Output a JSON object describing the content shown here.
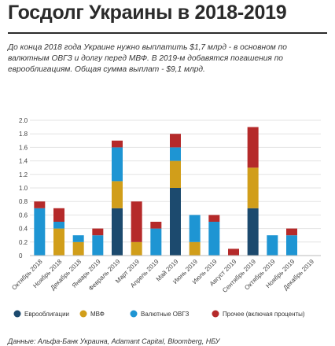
{
  "title": "Госдолг Украины в 2018-2019",
  "description": "До конца 2018 года Украине нужно выплатить $1,7 млрд - в основном по валютным ОВГЗ и долгу перед МВФ. В 2019-м добавятся погашения по еврооблигациям. Общая сумма выплат - $9,1 млрд.",
  "source": "Данные: Альфа-Банк Украина, Adamant Capital, Bloomberg, НБУ",
  "chart_data": {
    "type": "bar",
    "stacked": true,
    "categories": [
      "Октябрь 2018",
      "Ноябрь 2018",
      "Декабрь 2018",
      "Январь 2019",
      "Февраль 2019",
      "Март 2019",
      "Апрель 2019",
      "Май 2019",
      "Июнь 2019",
      "Июль 2019",
      "Август 2019",
      "Сентябрь 2019",
      "Октябрь 2019",
      "Ноябрь 2019",
      "Декабрь 2019"
    ],
    "series": [
      {
        "name": "Еврооблигации",
        "color": "#1c4a6e",
        "values": [
          0,
          0,
          0,
          0,
          0.7,
          0,
          0,
          1.0,
          0,
          0,
          0,
          0.7,
          0,
          0,
          0
        ]
      },
      {
        "name": "МВФ",
        "color": "#d19e1a",
        "values": [
          0,
          0.4,
          0.2,
          0,
          0.4,
          0.2,
          0,
          0.4,
          0.2,
          0,
          0,
          0.6,
          0,
          0,
          0
        ]
      },
      {
        "name": "Валютные ОВГЗ",
        "color": "#1e95d3",
        "values": [
          0.7,
          0.1,
          0.1,
          0.3,
          0.5,
          0,
          0.4,
          0.2,
          0.4,
          0.5,
          0,
          0,
          0.3,
          0.3,
          0
        ]
      },
      {
        "name": "Прочее (включая проценты)",
        "color": "#b52a2a",
        "values": [
          0.1,
          0.2,
          0,
          0.1,
          0.1,
          0.6,
          0.1,
          0.2,
          0,
          0.1,
          0.1,
          0.6,
          0,
          0.1,
          0
        ]
      }
    ],
    "y_ticks": [
      "0",
      "0.2",
      "0.4",
      "0.6",
      "0.8",
      "1.0",
      "1.2",
      "1.4",
      "1.6",
      "1.8",
      "2.0"
    ],
    "ylim": [
      0,
      2.0
    ],
    "grid": true,
    "legend_position": "bottom"
  }
}
